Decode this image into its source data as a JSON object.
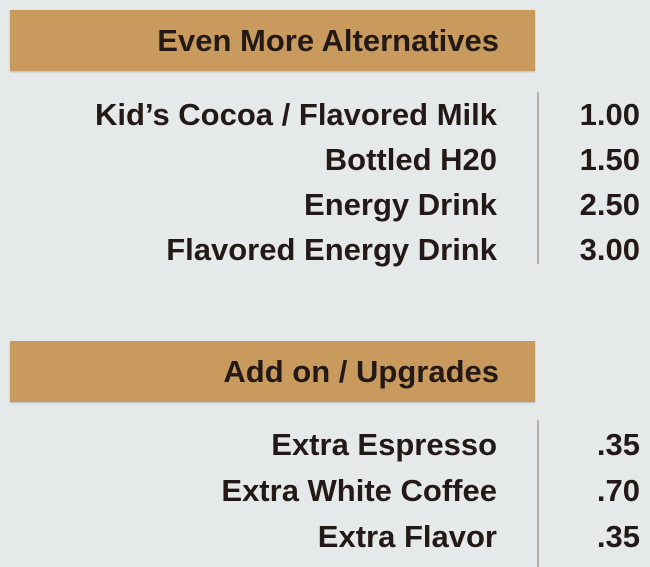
{
  "sections": [
    {
      "title": "Even More Alternatives",
      "items": [
        {
          "name": "Kid’s Cocoa / Flavored Milk",
          "price": "1.00"
        },
        {
          "name": "Bottled H20",
          "price": "1.50"
        },
        {
          "name": "Energy Drink",
          "price": "2.50"
        },
        {
          "name": "Flavored Energy Drink",
          "price": "3.00"
        }
      ]
    },
    {
      "title": "Add on / Upgrades",
      "items": [
        {
          "name": "Extra Espresso",
          "price": ".35"
        },
        {
          "name": "Extra White Coffee",
          "price": ".70"
        },
        {
          "name": "Extra Flavor",
          "price": ".35"
        }
      ]
    }
  ],
  "colors": {
    "banner": "#c99a5e",
    "text": "#231a17",
    "background": "#e6e9e9"
  }
}
